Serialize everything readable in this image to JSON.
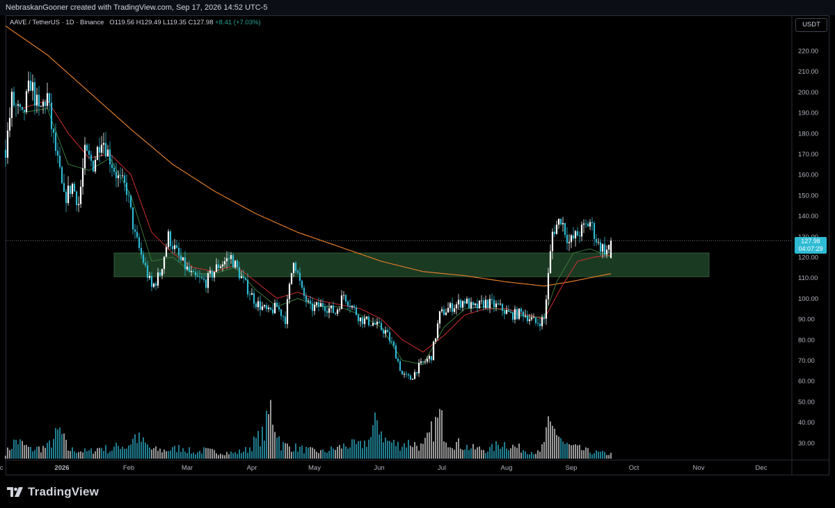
{
  "header": {
    "attribution": "NebraskanGooner created with TradingView.com, Sep 17, 2026 14:52 UTC-5"
  },
  "legend": {
    "symbol": "AAVE / TetherUS · 1D · Binance",
    "open_label": "O",
    "open": "119.56",
    "high_label": "H",
    "high": "129.49",
    "low_label": "L",
    "low": "119.35",
    "close_label": "C",
    "close": "127.98",
    "change": "+8.41 (+7.03%)"
  },
  "price_scale": {
    "currency": "USDT",
    "last_price": "127.98",
    "countdown": "04:07:29"
  },
  "footer": {
    "brand": "TradingView"
  },
  "colors": {
    "up": "#ffffff",
    "down": "#2ebbd4",
    "zone": "#1b3a22",
    "ma_fast": "#3a7a3a",
    "ma_mid": "#d32f2f",
    "ma_slow": "#e07b28"
  },
  "chart_data": {
    "type": "candlestick",
    "y_axis": {
      "ticks": [
        220,
        210,
        200,
        190,
        180,
        170,
        160,
        150,
        140,
        130,
        120,
        110,
        100,
        90,
        80,
        70,
        60,
        50,
        40,
        30
      ]
    },
    "x_axis": {
      "ticks": [
        "Dec",
        "2026",
        "Feb",
        "Mar",
        "Apr",
        "May",
        "Jun",
        "Jul",
        "Aug",
        "Sep",
        "Oct",
        "Nov",
        "Dec"
      ]
    },
    "x_tick_day": [
      -4,
      27,
      59,
      87,
      118,
      148,
      179,
      209,
      240,
      271,
      301,
      332,
      362
    ],
    "last_day": 290,
    "zone": {
      "day_start": 52,
      "day_end": 337,
      "low": 110.5,
      "high": 122
    },
    "price_path": [
      [
        0,
        172
      ],
      [
        3,
        196
      ],
      [
        8,
        187
      ],
      [
        12,
        205
      ],
      [
        16,
        190
      ],
      [
        20,
        198
      ],
      [
        22,
        183
      ],
      [
        26,
        160
      ],
      [
        28,
        148
      ],
      [
        32,
        155
      ],
      [
        35,
        146
      ],
      [
        38,
        170
      ],
      [
        42,
        165
      ],
      [
        46,
        179
      ],
      [
        50,
        168
      ],
      [
        54,
        158
      ],
      [
        58,
        153
      ],
      [
        62,
        130
      ],
      [
        66,
        118
      ],
      [
        70,
        105
      ],
      [
        74,
        112
      ],
      [
        78,
        130
      ],
      [
        84,
        118
      ],
      [
        90,
        110
      ],
      [
        96,
        108
      ],
      [
        102,
        116
      ],
      [
        108,
        120
      ],
      [
        114,
        108
      ],
      [
        120,
        98
      ],
      [
        126,
        93
      ],
      [
        130,
        96
      ],
      [
        134,
        90
      ],
      [
        138,
        120
      ],
      [
        142,
        103
      ],
      [
        146,
        95
      ],
      [
        152,
        97
      ],
      [
        158,
        93
      ],
      [
        162,
        102
      ],
      [
        166,
        96
      ],
      [
        170,
        90
      ],
      [
        176,
        88
      ],
      [
        182,
        84
      ],
      [
        186,
        76
      ],
      [
        190,
        63
      ],
      [
        194,
        61
      ],
      [
        198,
        67
      ],
      [
        204,
        72
      ],
      [
        208,
        92
      ],
      [
        212,
        95
      ],
      [
        216,
        97
      ],
      [
        220,
        99
      ],
      [
        224,
        95
      ],
      [
        230,
        98
      ],
      [
        236,
        96
      ],
      [
        242,
        92
      ],
      [
        248,
        93
      ],
      [
        254,
        88
      ],
      [
        258,
        90
      ],
      [
        262,
        132
      ],
      [
        266,
        139
      ],
      [
        270,
        127
      ],
      [
        276,
        133
      ],
      [
        280,
        137
      ],
      [
        284,
        126
      ],
      [
        288,
        123
      ],
      [
        290,
        128
      ]
    ],
    "ma_fast_path": [
      [
        8,
        190
      ],
      [
        20,
        192
      ],
      [
        30,
        165
      ],
      [
        40,
        162
      ],
      [
        50,
        168
      ],
      [
        60,
        150
      ],
      [
        70,
        118
      ],
      [
        80,
        120
      ],
      [
        90,
        112
      ],
      [
        100,
        112
      ],
      [
        110,
        115
      ],
      [
        120,
        104
      ],
      [
        130,
        96
      ],
      [
        140,
        100
      ],
      [
        150,
        96
      ],
      [
        160,
        96
      ],
      [
        170,
        92
      ],
      [
        180,
        86
      ],
      [
        190,
        70
      ],
      [
        200,
        68
      ],
      [
        210,
        86
      ],
      [
        220,
        95
      ],
      [
        230,
        96
      ],
      [
        240,
        94
      ],
      [
        250,
        91
      ],
      [
        258,
        91
      ],
      [
        264,
        108
      ],
      [
        272,
        122
      ],
      [
        280,
        124
      ],
      [
        290,
        120
      ]
    ],
    "ma_mid_path": [
      [
        8,
        192
      ],
      [
        20,
        196
      ],
      [
        30,
        180
      ],
      [
        40,
        168
      ],
      [
        50,
        170
      ],
      [
        60,
        160
      ],
      [
        70,
        132
      ],
      [
        80,
        122
      ],
      [
        90,
        115
      ],
      [
        100,
        113
      ],
      [
        110,
        116
      ],
      [
        120,
        108
      ],
      [
        130,
        100
      ],
      [
        140,
        103
      ],
      [
        150,
        99
      ],
      [
        160,
        97
      ],
      [
        170,
        95
      ],
      [
        180,
        90
      ],
      [
        190,
        80
      ],
      [
        200,
        74
      ],
      [
        210,
        82
      ],
      [
        220,
        92
      ],
      [
        230,
        95
      ],
      [
        240,
        95
      ],
      [
        250,
        92
      ],
      [
        258,
        90
      ],
      [
        266,
        105
      ],
      [
        274,
        118
      ],
      [
        282,
        120
      ],
      [
        290,
        121
      ]
    ],
    "ma_slow_path": [
      [
        0,
        232
      ],
      [
        20,
        218
      ],
      [
        40,
        200
      ],
      [
        60,
        182
      ],
      [
        80,
        165
      ],
      [
        100,
        152
      ],
      [
        120,
        141
      ],
      [
        140,
        132
      ],
      [
        160,
        125
      ],
      [
        180,
        118
      ],
      [
        200,
        113
      ],
      [
        220,
        111
      ],
      [
        240,
        108
      ],
      [
        258,
        106
      ],
      [
        270,
        108
      ],
      [
        280,
        110
      ],
      [
        290,
        112
      ]
    ],
    "volume_path": [
      [
        0,
        12
      ],
      [
        5,
        40
      ],
      [
        12,
        20
      ],
      [
        20,
        25
      ],
      [
        26,
        60
      ],
      [
        30,
        20
      ],
      [
        40,
        15
      ],
      [
        46,
        25
      ],
      [
        50,
        18
      ],
      [
        55,
        30
      ],
      [
        58,
        25
      ],
      [
        62,
        48
      ],
      [
        66,
        35
      ],
      [
        70,
        20
      ],
      [
        75,
        18
      ],
      [
        80,
        20
      ],
      [
        85,
        25
      ],
      [
        90,
        12
      ],
      [
        95,
        18
      ],
      [
        100,
        15
      ],
      [
        110,
        12
      ],
      [
        116,
        20
      ],
      [
        120,
        40
      ],
      [
        124,
        55
      ],
      [
        127,
        110
      ],
      [
        132,
        30
      ],
      [
        138,
        25
      ],
      [
        145,
        18
      ],
      [
        152,
        15
      ],
      [
        158,
        22
      ],
      [
        164,
        30
      ],
      [
        170,
        28
      ],
      [
        175,
        45
      ],
      [
        178,
        85
      ],
      [
        182,
        40
      ],
      [
        188,
        30
      ],
      [
        194,
        35
      ],
      [
        200,
        25
      ],
      [
        208,
        90
      ],
      [
        212,
        40
      ],
      [
        218,
        30
      ],
      [
        224,
        22
      ],
      [
        232,
        20
      ],
      [
        238,
        35
      ],
      [
        244,
        25
      ],
      [
        250,
        18
      ],
      [
        256,
        12
      ],
      [
        260,
        65
      ],
      [
        264,
        60
      ],
      [
        268,
        30
      ],
      [
        274,
        22
      ],
      [
        280,
        15
      ],
      [
        286,
        12
      ],
      [
        290,
        10
      ]
    ]
  }
}
